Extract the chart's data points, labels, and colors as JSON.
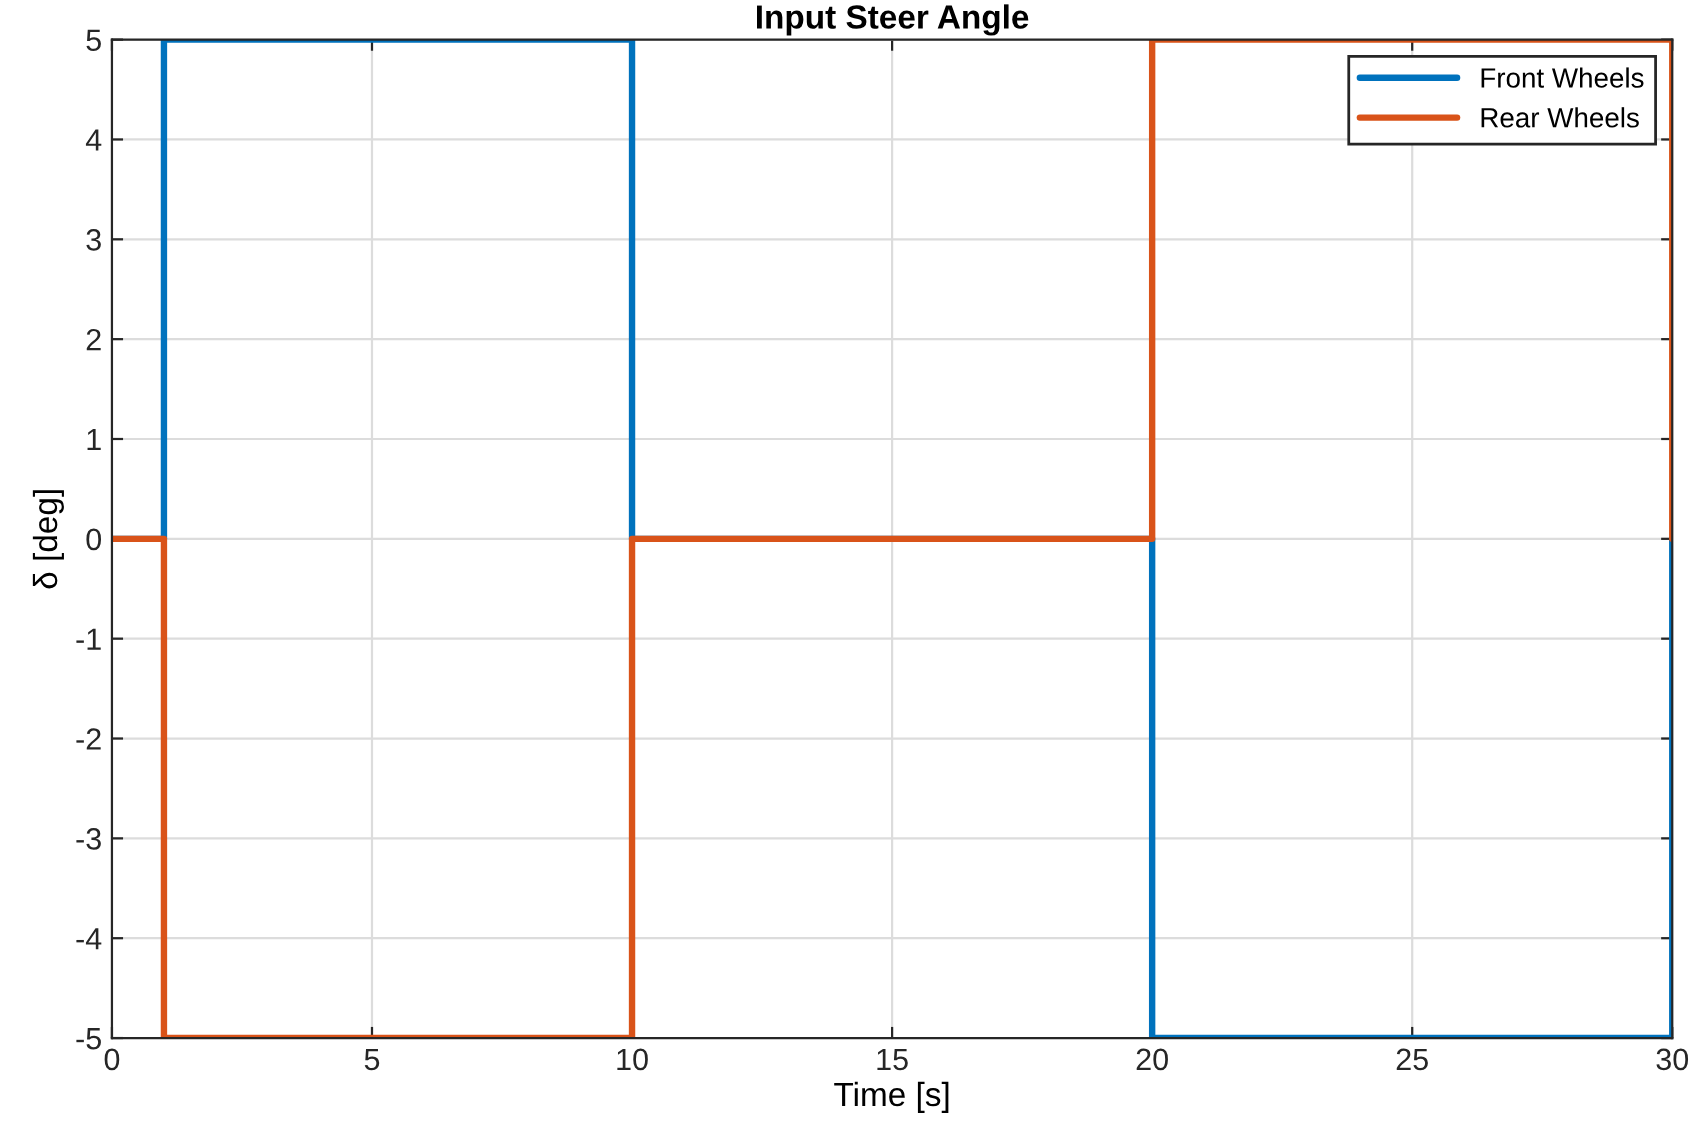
{
  "chart_data": {
    "type": "line",
    "title": "Input Steer Angle",
    "xlabel": "Time [s]",
    "ylabel": "δ [deg]",
    "series": [
      {
        "name": "Front Wheels",
        "color": "#0072bd",
        "x": [
          0,
          1,
          1,
          10,
          10,
          20,
          20,
          30,
          30
        ],
        "values": [
          0,
          0,
          5,
          5,
          0,
          0,
          -5,
          -5,
          0
        ]
      },
      {
        "name": "Rear Wheels",
        "color": "#d95319",
        "x": [
          0,
          1,
          1,
          10,
          10,
          20,
          20,
          30,
          30
        ],
        "values": [
          0,
          0,
          -5,
          -5,
          0,
          0,
          5,
          5,
          0
        ]
      }
    ],
    "xlim": [
      0,
      30
    ],
    "xticks": [
      0,
      5,
      10,
      15,
      20,
      25,
      30
    ],
    "ylim": [
      -5,
      5
    ],
    "yticks": [
      -5,
      -4,
      -3,
      -2,
      -1,
      0,
      1,
      2,
      3,
      4,
      5
    ],
    "grid": true,
    "legend": "top right",
    "line_style": "solid"
  }
}
